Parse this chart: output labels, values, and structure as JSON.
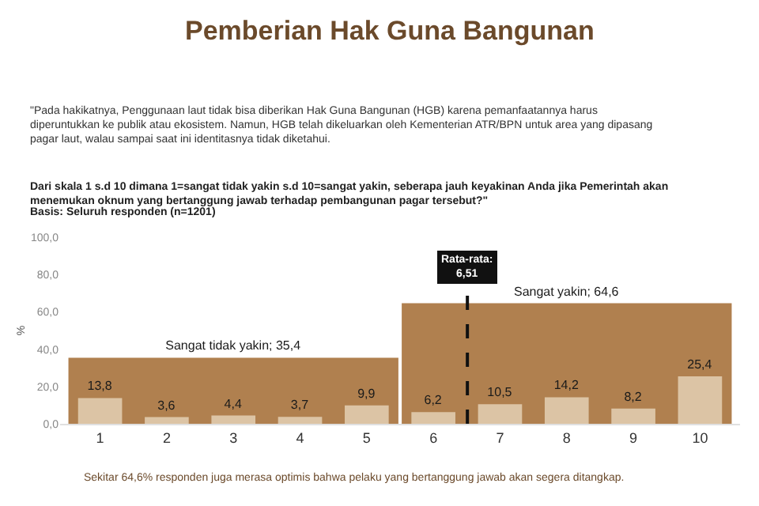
{
  "chart_data": {
    "type": "bar",
    "title": "Pemberian Hak Guna Bangunan",
    "subtitle": "\"Pada hakikatnya, Penggunaan laut tidak bisa diberikan Hak Guna Bangunan (HGB) karena pemanfaatannya harus diperuntukkan ke publik atau ekosistem. Namun, HGB telah dikeluarkan oleh Kementerian ATR/BPN untuk area yang dipasang pagar laut, walau sampai saat ini identitasnya tidak diketahui.",
    "annotations": [
      "Dari skala 1 s.d 10 dimana 1=sangat tidak yakin s.d 10=sangat yakin, seberapa jauh keyakinan Anda jika Pemerintah akan menemukan oknum yang bertanggung jawab terhadap pembangunan pagar tersebut?\"",
      "Basis: Seluruh responden (n=1201)",
      "Sekitar 64,6% responden juga merasa optimis bahwa pelaku yang bertanggung jawab akan segera ditangkap."
    ],
    "ylabel": "%",
    "x": [
      1,
      2,
      3,
      4,
      5,
      6,
      7,
      8,
      9,
      10
    ],
    "xlim": [
      0.4,
      10.6
    ],
    "xticks": [
      1,
      2,
      3,
      4,
      5,
      6,
      7,
      8,
      9,
      10
    ],
    "ylim": [
      0,
      100
    ],
    "yticks": [
      {
        "value": 0,
        "label": "0,0"
      },
      {
        "value": 20,
        "label": "20,0"
      },
      {
        "value": 40,
        "label": "40,0"
      },
      {
        "value": 60,
        "label": "60,0"
      },
      {
        "value": 80,
        "label": "80,0"
      },
      {
        "value": 100,
        "label": "100,0"
      }
    ],
    "series": [
      {
        "color": "#b0804f",
        "x": [
          3,
          8
        ],
        "values": [
          35.4,
          64.6
        ],
        "value_labels": [
          "Sangat tidak yakin; 35,4",
          "Sangat yakin; 64,6"
        ]
      },
      {
        "color": "#dcc4a5",
        "values": [
          13.8,
          3.6,
          4.4,
          3.7,
          9.9,
          6.2,
          10.5,
          14.2,
          8.2,
          25.4
        ],
        "value_labels": [
          "13,8",
          "3,6",
          "4,4",
          "3,7",
          "9,9",
          "6,2",
          "10,5",
          "14,2",
          "8,2",
          "25,4"
        ]
      }
    ],
    "ref_lines": [
      {
        "axis": "x",
        "value": 6.51,
        "label": "Rata-rata: 6,51",
        "color": "#111111",
        "line_style": "dashed"
      }
    ]
  }
}
